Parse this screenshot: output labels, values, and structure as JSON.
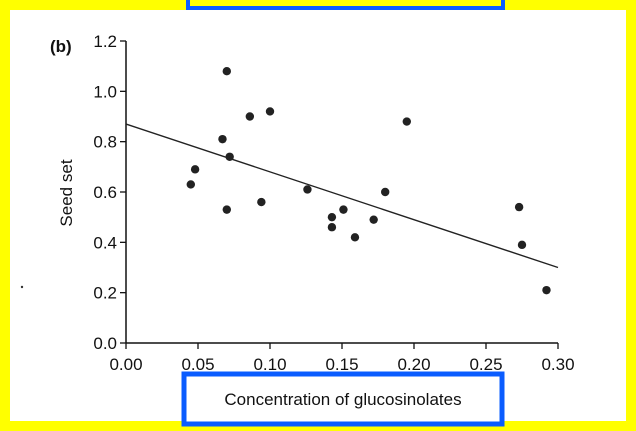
{
  "annotation_colors": {
    "frame": "#FFFF00",
    "box": "#0A5CFF"
  },
  "chart_data": {
    "type": "scatter",
    "panel_label": "(b)",
    "xlabel": "Concentration of glucosinolates",
    "ylabel": "Seed set",
    "xlim": [
      0.0,
      0.3
    ],
    "ylim": [
      0.0,
      1.2
    ],
    "x_ticks": [
      0.0,
      0.05,
      0.1,
      0.15,
      0.2,
      0.25,
      0.3
    ],
    "x_tick_labels": [
      "0.00",
      "0.05",
      "0.10",
      "0.15",
      "0.20",
      "0.25",
      "0.30"
    ],
    "y_ticks": [
      0.0,
      0.2,
      0.4,
      0.6,
      0.8,
      1.0,
      1.2
    ],
    "y_tick_labels": [
      "0.0",
      "0.2",
      "0.4",
      "0.6",
      "0.8",
      "1.0",
      "1.2"
    ],
    "grid": false,
    "points": [
      {
        "x": 0.045,
        "y": 0.63
      },
      {
        "x": 0.048,
        "y": 0.69
      },
      {
        "x": 0.067,
        "y": 0.81
      },
      {
        "x": 0.07,
        "y": 1.08
      },
      {
        "x": 0.07,
        "y": 0.53
      },
      {
        "x": 0.072,
        "y": 0.74
      },
      {
        "x": 0.086,
        "y": 0.9
      },
      {
        "x": 0.094,
        "y": 0.56
      },
      {
        "x": 0.1,
        "y": 0.92
      },
      {
        "x": 0.126,
        "y": 0.61
      },
      {
        "x": 0.143,
        "y": 0.5
      },
      {
        "x": 0.143,
        "y": 0.46
      },
      {
        "x": 0.151,
        "y": 0.53
      },
      {
        "x": 0.159,
        "y": 0.42
      },
      {
        "x": 0.172,
        "y": 0.49
      },
      {
        "x": 0.18,
        "y": 0.6
      },
      {
        "x": 0.195,
        "y": 0.88
      },
      {
        "x": 0.273,
        "y": 0.54
      },
      {
        "x": 0.275,
        "y": 0.39
      },
      {
        "x": 0.292,
        "y": 0.21
      }
    ],
    "trend_line": {
      "x": [
        0.0,
        0.3
      ],
      "y": [
        0.87,
        0.3
      ]
    }
  }
}
